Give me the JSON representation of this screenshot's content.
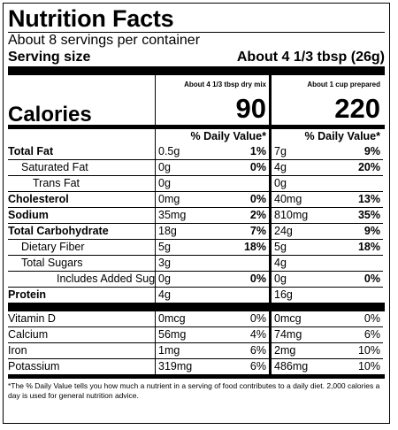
{
  "label": {
    "title": "Nutrition Facts",
    "servings_per_container": "About 8 servings per container",
    "serving_size_label": "Serving size",
    "serving_size_value": "About 4 1/3 tbsp (26g)",
    "columns": [
      {
        "header": "About 4 1/3 tbsp dry mix",
        "calories": "90"
      },
      {
        "header": "About 1 cup prepared",
        "calories": "220"
      }
    ],
    "calories_label": "Calories",
    "dv_header": "% Daily Value*",
    "nutrients": [
      {
        "name": "Total Fat",
        "style": "bold",
        "c1_amount": "0.5g",
        "c1_dv": "1%",
        "c2_amount": "7g",
        "c2_dv": "9%"
      },
      {
        "name": "Saturated Fat",
        "style": "indent1",
        "c1_amount": "0g",
        "c1_dv": "0%",
        "c2_amount": "4g",
        "c2_dv": "20%"
      },
      {
        "name": "Trans Fat",
        "style": "indent2",
        "c1_amount": "0g",
        "c1_dv": "",
        "c2_amount": "0g",
        "c2_dv": ""
      },
      {
        "name": "Cholesterol",
        "style": "bold",
        "c1_amount": "0mg",
        "c1_dv": "0%",
        "c2_amount": "40mg",
        "c2_dv": "13%"
      },
      {
        "name": "Sodium",
        "style": "bold",
        "c1_amount": "35mg",
        "c1_dv": "2%",
        "c2_amount": "810mg",
        "c2_dv": "35%"
      },
      {
        "name": "Total Carbohydrate",
        "style": "bold",
        "c1_amount": "18g",
        "c1_dv": "7%",
        "c2_amount": "24g",
        "c2_dv": "9%"
      },
      {
        "name": "Dietary Fiber",
        "style": "indent1",
        "c1_amount": "5g",
        "c1_dv": "18%",
        "c2_amount": "5g",
        "c2_dv": "18%"
      },
      {
        "name": "Total Sugars",
        "style": "indent1",
        "c1_amount": "3g",
        "c1_dv": "",
        "c2_amount": "4g",
        "c2_dv": ""
      },
      {
        "name": "Includes Added Sugars",
        "style": "indent3",
        "c1_amount": "0g",
        "c1_dv": "0%",
        "c2_amount": "0g",
        "c2_dv": "0%"
      },
      {
        "name": "Protein",
        "style": "bold",
        "c1_amount": "4g",
        "c1_dv": "",
        "c2_amount": "16g",
        "c2_dv": ""
      }
    ],
    "vitamins": [
      {
        "name": "Vitamin D",
        "c1_amount": "0mcg",
        "c1_dv": "0%",
        "c2_amount": "0mcg",
        "c2_dv": "0%"
      },
      {
        "name": "Calcium",
        "c1_amount": "56mg",
        "c1_dv": "4%",
        "c2_amount": "74mg",
        "c2_dv": "6%"
      },
      {
        "name": "Iron",
        "c1_amount": "1mg",
        "c1_dv": "6%",
        "c2_amount": "2mg",
        "c2_dv": "10%"
      },
      {
        "name": "Potassium",
        "c1_amount": "319mg",
        "c1_dv": "6%",
        "c2_amount": "486mg",
        "c2_dv": "10%"
      }
    ],
    "footnote": "*The % Daily Value tells you how much a nutrient in a serving of food contributes to a daily diet. 2,000 calories a day is used for general nutrition advice."
  }
}
